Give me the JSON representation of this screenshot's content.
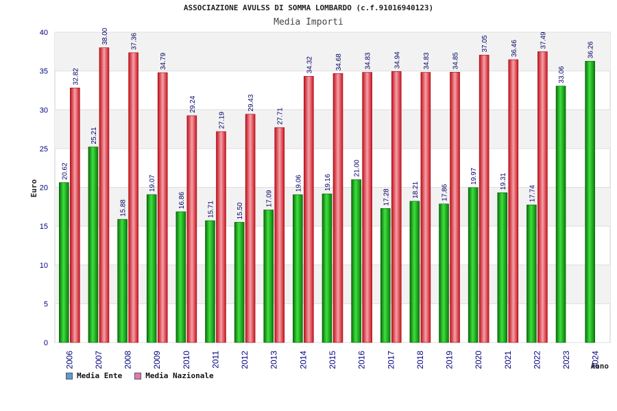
{
  "chart_data": {
    "type": "bar",
    "title": "ASSOCIAZIONE AVULSS DI SOMMA LOMBARDO (c.f.91016940123)",
    "subtitle": "Media Importi",
    "xlabel": "Anno",
    "ylabel": "Euro",
    "ylim": [
      0,
      40
    ],
    "yticks": [
      0,
      5,
      10,
      15,
      20,
      25,
      30,
      35,
      40
    ],
    "grid": true,
    "legend_position": "bottom-left",
    "categories": [
      "2006",
      "2007",
      "2008",
      "2009",
      "2010",
      "2011",
      "2012",
      "2013",
      "2014",
      "2015",
      "2016",
      "2017",
      "2018",
      "2019",
      "2020",
      "2021",
      "2022",
      "2023",
      "2024"
    ],
    "series": [
      {
        "name": "Media Ente",
        "legend_color": "#5b9bd5",
        "bar_color": "#12b012",
        "values": [
          20.62,
          25.21,
          15.88,
          19.07,
          16.86,
          15.71,
          15.5,
          17.09,
          19.06,
          19.16,
          21.0,
          17.28,
          18.21,
          17.86,
          19.97,
          19.31,
          17.74,
          33.06,
          36.26
        ],
        "labels": [
          "20.62",
          "25.21",
          "15.88",
          "19.07",
          "16.86",
          "15.71",
          "15.50",
          "17.09",
          "19.06",
          "19.16",
          "21.00",
          "17.28",
          "18.21",
          "17.86",
          "19.97",
          "19.31",
          "17.74",
          "33.06",
          "36.26"
        ]
      },
      {
        "name": "Media Nazionale",
        "legend_color": "#e07ab0",
        "bar_color": "#e8202a",
        "values": [
          32.82,
          38.0,
          37.36,
          34.79,
          29.24,
          27.19,
          29.43,
          27.71,
          34.32,
          34.68,
          34.83,
          34.94,
          34.83,
          34.85,
          37.05,
          36.46,
          37.49,
          null,
          null
        ],
        "labels": [
          "32.82",
          "38.00",
          "37.36",
          "34.79",
          "29.24",
          "27.19",
          "29.43",
          "27.71",
          "34.32",
          "34.68",
          "34.83",
          "34.94",
          "34.83",
          "34.85",
          "37.05",
          "36.46",
          "37.49",
          null,
          null
        ]
      }
    ]
  }
}
